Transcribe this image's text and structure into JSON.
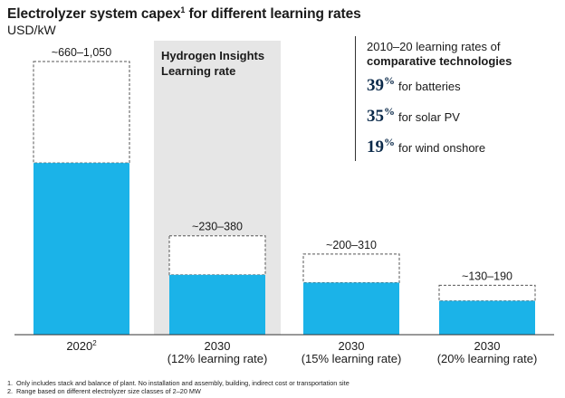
{
  "header": {
    "title": "Electrolyzer system capex",
    "title_sup": "1",
    "title_rest": " for different learning rates",
    "subtitle": "USD/kW"
  },
  "highlight": {
    "label_line1": "Hydrogen Insights",
    "label_line2": "Learning rate"
  },
  "learning_rates_box": {
    "heading": "2010–20 learning rates of",
    "heading_bold": "comparative technologies",
    "items": [
      {
        "value": "39",
        "unit": "%",
        "label": "for batteries"
      },
      {
        "value": "35",
        "unit": "%",
        "label": "for solar PV"
      },
      {
        "value": "19",
        "unit": "%",
        "label": "for wind onshore"
      }
    ]
  },
  "colors": {
    "bar": "#1bb3e8",
    "highlight_band": "#e6e6e6",
    "range_border": "#555555",
    "axis": "#333333"
  },
  "chart_data": {
    "type": "bar",
    "categories": [
      "2020",
      "2030 (12% learning rate)",
      "2030 (15% learning rate)",
      "2030 (20% learning rate)"
    ],
    "category_lines": [
      [
        "2020"
      ],
      [
        "2030",
        "(12% learning rate)"
      ],
      [
        "2030",
        "(15% learning rate)"
      ],
      [
        "2030",
        "(20% learning rate)"
      ]
    ],
    "category_sup": [
      "2",
      "",
      "",
      ""
    ],
    "low": [
      660,
      230,
      200,
      130
    ],
    "high": [
      1050,
      380,
      310,
      190
    ],
    "range_labels": [
      "~660–1,050",
      "~230–380",
      "~200–310",
      "~130–190"
    ],
    "ylabel": "USD/kW",
    "ylim": [
      0,
      1050
    ],
    "grid": false,
    "highlighted_category": 1
  },
  "footnotes": [
    {
      "num": "1.",
      "text": "Only includes stack and balance of plant. No installation and assembly, building, indirect cost or transportation site"
    },
    {
      "num": "2.",
      "text": "Range based on different electrolyzer size classes of 2–20 MW"
    }
  ]
}
